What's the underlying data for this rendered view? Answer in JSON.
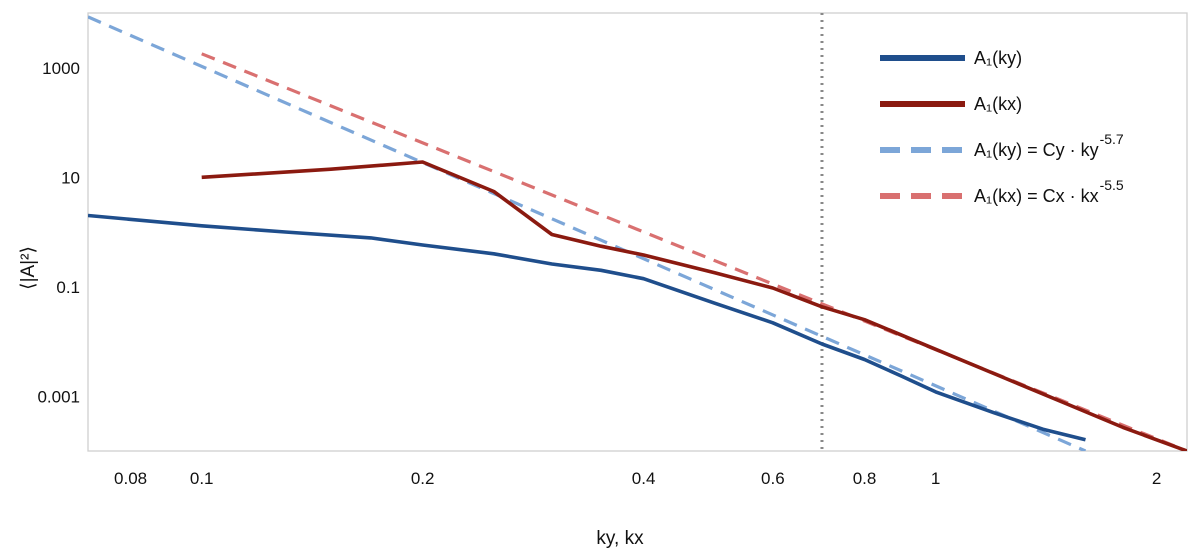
{
  "chart_data": {
    "type": "line",
    "title": "",
    "xlabel": "ky, kx",
    "ylabel": "⟨|A|²⟩",
    "xscale": "log",
    "yscale": "log",
    "xlim": [
      0.07,
      2.2
    ],
    "ylim": [
      0.0001,
      10000
    ],
    "grid": false,
    "legend_position": "top-right",
    "x_ticks": [
      {
        "value": 0.08,
        "label": "0.08"
      },
      {
        "value": 0.1,
        "label": "0.1"
      },
      {
        "value": 0.2,
        "label": "0.2"
      },
      {
        "value": 0.4,
        "label": "0.4"
      },
      {
        "value": 0.6,
        "label": "0.6"
      },
      {
        "value": 0.8,
        "label": "0.8"
      },
      {
        "value": 1,
        "label": "1"
      },
      {
        "value": 2,
        "label": "2"
      }
    ],
    "y_ticks": [
      {
        "value": 1000,
        "label": "1000"
      },
      {
        "value": 10,
        "label": "10"
      },
      {
        "value": 0.1,
        "label": "0.1"
      },
      {
        "value": 0.001,
        "label": "0.001"
      }
    ],
    "reference_line": {
      "x": 0.7,
      "style": "dotted",
      "color": "#888888"
    },
    "series": [
      {
        "name": "A₁(ky)",
        "color": "#1f4e8c",
        "style": "solid",
        "x": [
          0.07,
          0.1,
          0.13,
          0.17,
          0.2,
          0.25,
          0.3,
          0.35,
          0.4,
          0.5,
          0.6,
          0.7,
          0.8,
          0.9,
          1.0,
          1.2,
          1.4,
          1.6
        ],
        "y": [
          2.0,
          1.3,
          1.0,
          0.78,
          0.58,
          0.4,
          0.26,
          0.2,
          0.14,
          0.05,
          0.022,
          0.009,
          0.0047,
          0.0023,
          0.0012,
          0.0005,
          0.00025,
          0.00016
        ]
      },
      {
        "name": "A₁(kx)",
        "color": "#8b1a10",
        "style": "solid",
        "x": [
          0.1,
          0.15,
          0.2,
          0.25,
          0.3,
          0.35,
          0.4,
          0.5,
          0.6,
          0.7,
          0.8,
          1.0,
          1.2,
          1.5,
          1.8,
          2.2
        ],
        "y": [
          10,
          14,
          19,
          5.5,
          0.9,
          0.55,
          0.38,
          0.18,
          0.095,
          0.043,
          0.025,
          0.0072,
          0.0026,
          0.00075,
          0.00027,
          0.0001
        ]
      },
      {
        "name": "A₁(ky) = Cy · ky^-5.7",
        "color": "#7ca6d8",
        "style": "dashed",
        "x": [
          0.07,
          1.6
        ],
        "y": [
          8500,
          0.0001
        ]
      },
      {
        "name": "A₁(kx) = Cx · kx^-5.5",
        "color": "#d97070",
        "style": "dashed",
        "x": [
          0.1,
          2.2
        ],
        "y": [
          1800,
          0.0001
        ]
      }
    ]
  },
  "legend": {
    "items": [
      {
        "main": "A₁(ky)",
        "exp": ""
      },
      {
        "main": "A₁(kx)",
        "exp": ""
      },
      {
        "main": "A₁(ky) = Cy · ky",
        "exp": "-5.7"
      },
      {
        "main": "A₁(kx) = Cx · kx",
        "exp": "-5.5"
      }
    ]
  }
}
